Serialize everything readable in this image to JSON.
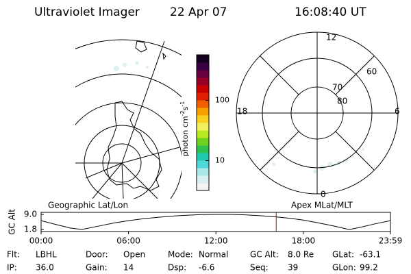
{
  "header": {
    "instrument": "Ultraviolet Imager",
    "date": "22 Apr 07",
    "time": "16:08:40 UT"
  },
  "chart_data": [
    {
      "type": "colorbar",
      "label": [
        "photon cm",
        "-2",
        "s",
        "-1"
      ],
      "log": true,
      "ylim": [
        3.2,
        575
      ],
      "yticks": [
        10,
        100
      ],
      "colors": [
        "#f4f4f4",
        "#d8f0f0",
        "#a8e8e8",
        "#50d8d8",
        "#20c8b0",
        "#30c050",
        "#70d020",
        "#b8e820",
        "#f0f060",
        "#f8d020",
        "#f8a000",
        "#f06000",
        "#e02000",
        "#c80000",
        "#980028",
        "#680040",
        "#380040",
        "#140020"
      ]
    },
    {
      "type": "line",
      "title": "Geographic Lat/Lon",
      "subtitle": "Apex MLat/MLT",
      "ylabel": "GC Alt",
      "x": [
        0,
        1,
        2,
        2.8,
        4,
        5,
        6,
        7,
        8,
        9,
        10,
        11,
        12,
        13,
        14,
        15,
        16,
        17,
        18,
        19,
        20,
        21,
        21.2,
        22,
        23,
        23.98
      ],
      "values": [
        6.0,
        4.2,
        2.5,
        1.8,
        3.5,
        4.9,
        6.0,
        6.9,
        7.6,
        8.2,
        8.6,
        8.9,
        9.0,
        9.0,
        8.8,
        8.4,
        7.9,
        7.2,
        6.3,
        5.0,
        3.6,
        2.0,
        1.8,
        3.0,
        4.6,
        6.0
      ],
      "color": "#000000",
      "marker": 16.14,
      "marker_color": "#cc0000",
      "xlim": [
        0,
        23.98
      ],
      "xticks": [
        {
          "value": 0,
          "label": "00:00"
        },
        {
          "value": 6,
          "label": "06:00"
        },
        {
          "value": 12,
          "label": "12:00"
        },
        {
          "value": 18,
          "label": "18:00"
        },
        {
          "value": 23.98,
          "label": "23:59"
        }
      ],
      "ylim": [
        1.8,
        9.0
      ],
      "yticks": [
        {
          "value": 9.0,
          "label": "9.0"
        },
        1.8
      ]
    }
  ],
  "polar": {
    "mlt_labels": [
      "12",
      "18",
      "6",
      "0"
    ],
    "mlat_labels": [
      "60",
      "70",
      "80"
    ]
  },
  "footer": {
    "rows": [
      [
        [
          "Flt:",
          "LBHL"
        ],
        [
          "Door:",
          "Open"
        ],
        [
          "Mode:",
          "Normal"
        ],
        [
          "GC Alt:",
          "8.0 Re"
        ],
        [
          "GLat:",
          "-63.1"
        ]
      ],
      [
        [
          "IP:",
          "36.0"
        ],
        [
          "Gain:",
          "14"
        ],
        [
          "Dsp:",
          "-6.6"
        ],
        [
          "Seq:",
          "39"
        ],
        [
          "GLon:",
          "99.2"
        ]
      ]
    ]
  }
}
